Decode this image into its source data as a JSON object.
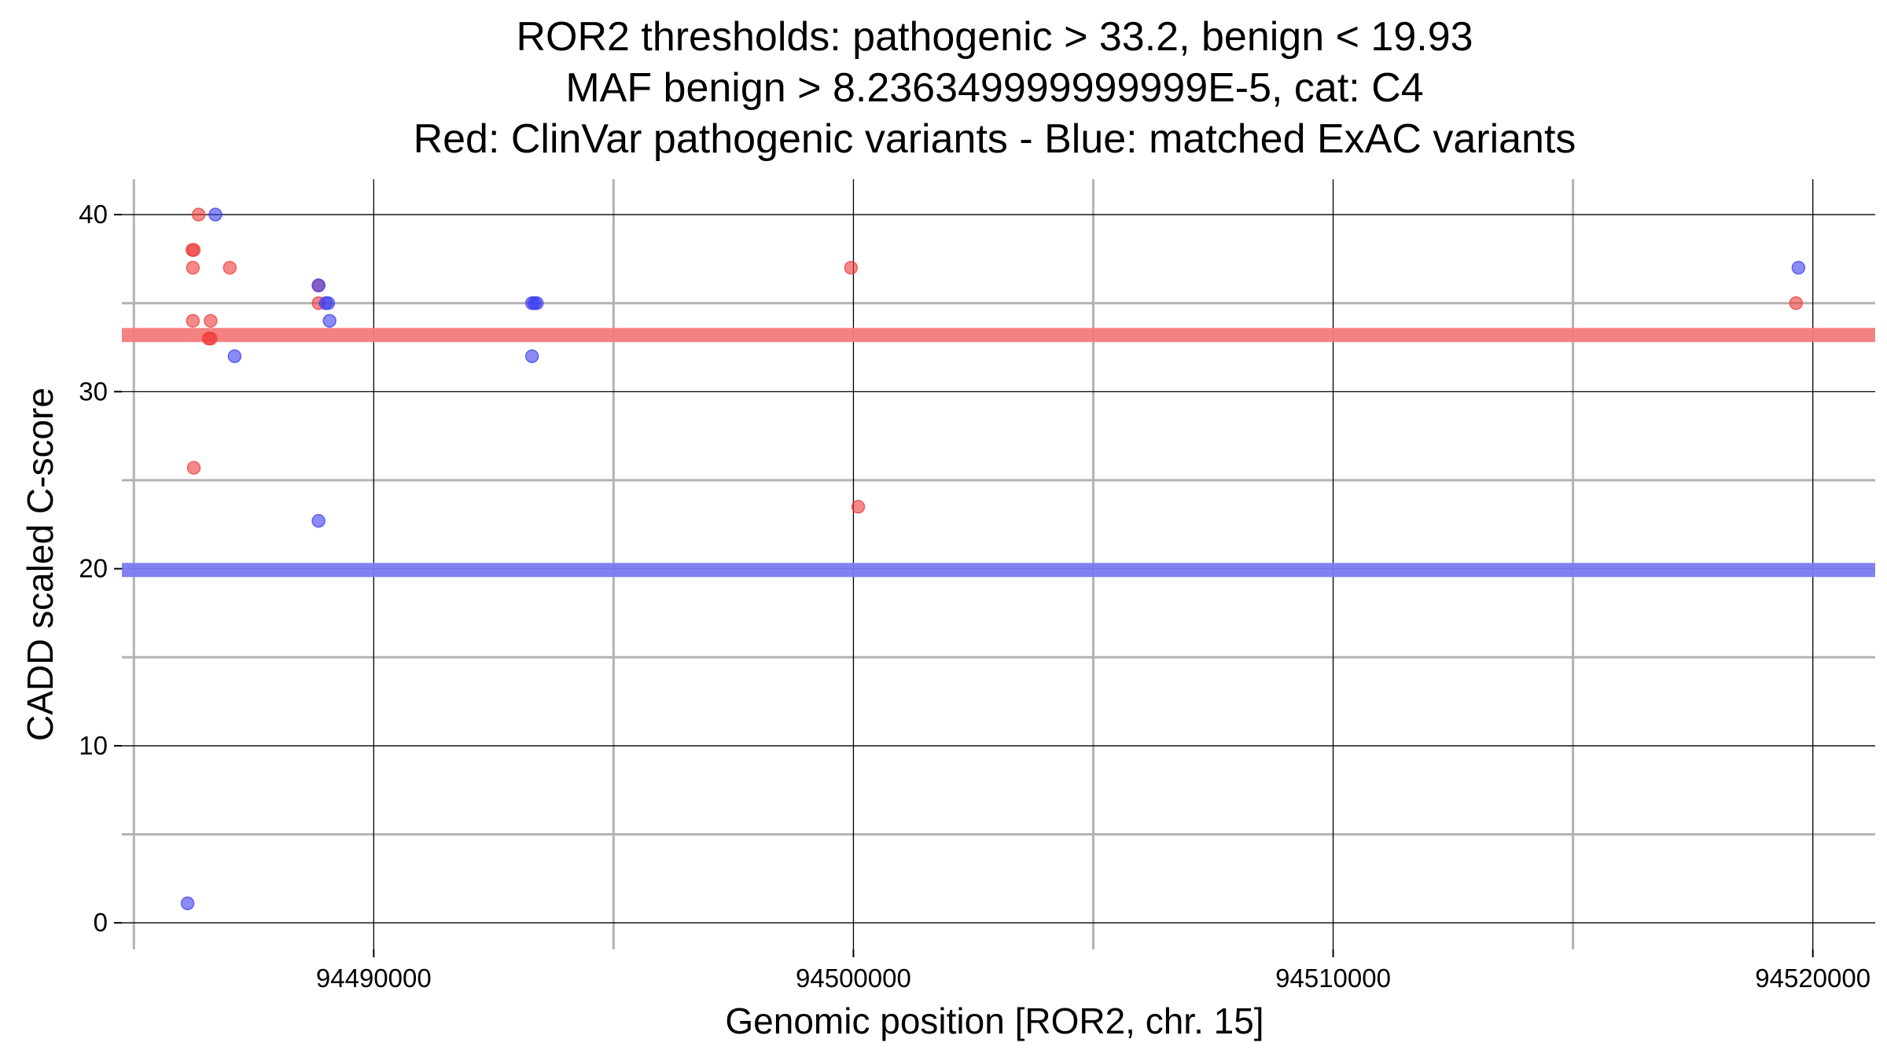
{
  "chart_data": {
    "type": "scatter",
    "title_lines": [
      "ROR2 thresholds: pathogenic > 33.2, benign < 19.93",
      "MAF benign > 8.236349999999999E-5, cat: C4",
      "Red: ClinVar pathogenic variants - Blue: matched ExAC variants"
    ],
    "xlabel": "Genomic position [ROR2, chr. 15]",
    "ylabel": "CADD scaled C-score",
    "xlim": [
      94484750,
      94521300
    ],
    "ylim": [
      -1.5,
      42
    ],
    "x_ticks": [
      94490000,
      94500000,
      94510000,
      94520000
    ],
    "x_tick_labels": [
      "94490000",
      "94500000",
      "94510000",
      "94520000"
    ],
    "x_minor_grid": [
      94485000,
      94495000,
      94505000,
      94515000
    ],
    "y_ticks": [
      0,
      10,
      20,
      30,
      40
    ],
    "y_tick_labels": [
      "0",
      "10",
      "20",
      "30",
      "40"
    ],
    "y_minor_grid": [
      5,
      15,
      25,
      35
    ],
    "thresholds": [
      {
        "name": "pathogenic",
        "value": 33.2,
        "color": "#f47c7c"
      },
      {
        "name": "benign",
        "value": 19.93,
        "color": "#7b7bf2"
      }
    ],
    "series": [
      {
        "name": "ClinVar pathogenic variants",
        "color": "#ee3b3b",
        "points": [
          {
            "x": 94486350,
            "y": 40
          },
          {
            "x": 94486220,
            "y": 38
          },
          {
            "x": 94486250,
            "y": 38
          },
          {
            "x": 94486230,
            "y": 37
          },
          {
            "x": 94487000,
            "y": 37
          },
          {
            "x": 94486230,
            "y": 34
          },
          {
            "x": 94486600,
            "y": 34
          },
          {
            "x": 94486560,
            "y": 33
          },
          {
            "x": 94486600,
            "y": 33
          },
          {
            "x": 94486250,
            "y": 25.7
          },
          {
            "x": 94488850,
            "y": 36
          },
          {
            "x": 94488850,
            "y": 35
          },
          {
            "x": 94499950,
            "y": 37
          },
          {
            "x": 94500100,
            "y": 23.5
          },
          {
            "x": 94519650,
            "y": 35
          }
        ]
      },
      {
        "name": "matched ExAC variants",
        "color": "#3d3dee",
        "points": [
          {
            "x": 94486700,
            "y": 40
          },
          {
            "x": 94487100,
            "y": 32
          },
          {
            "x": 94488850,
            "y": 36
          },
          {
            "x": 94489000,
            "y": 35
          },
          {
            "x": 94489050,
            "y": 35
          },
          {
            "x": 94489080,
            "y": 34
          },
          {
            "x": 94488850,
            "y": 22.7
          },
          {
            "x": 94493300,
            "y": 35
          },
          {
            "x": 94493350,
            "y": 35
          },
          {
            "x": 94493400,
            "y": 35
          },
          {
            "x": 94493300,
            "y": 32
          },
          {
            "x": 94486120,
            "y": 1.1
          },
          {
            "x": 94519700,
            "y": 37
          }
        ]
      }
    ]
  }
}
